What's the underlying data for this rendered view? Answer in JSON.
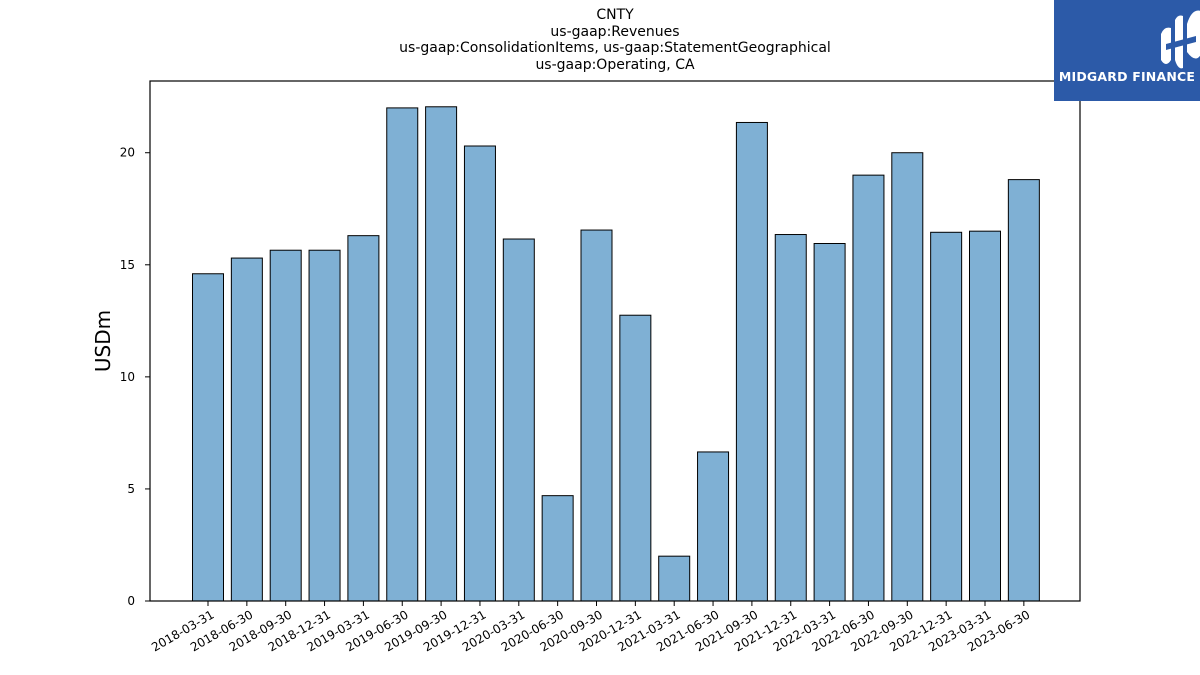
{
  "chart_data": {
    "type": "bar",
    "title_lines": [
      "CNTY",
      "us-gaap:Revenues",
      "us-gaap:ConsolidationItems, us-gaap:StatementGeographical",
      "us-gaap:Operating, CA"
    ],
    "ylabel": "USDm",
    "xlabel": "",
    "ylim": [
      0,
      23.2
    ],
    "yticks": [
      0,
      5,
      10,
      15,
      20
    ],
    "grid": false,
    "bar_color": "#7fb0d4",
    "edge_color": "#000000",
    "categories": [
      "2018-03-31",
      "2018-06-30",
      "2018-09-30",
      "2018-12-31",
      "2019-03-31",
      "2019-06-30",
      "2019-09-30",
      "2019-12-31",
      "2020-03-31",
      "2020-06-30",
      "2020-09-30",
      "2020-12-31",
      "2021-03-31",
      "2021-06-30",
      "2021-09-30",
      "2021-12-31",
      "2022-03-31",
      "2022-06-30",
      "2022-09-30",
      "2022-12-31",
      "2023-03-31",
      "2023-06-30"
    ],
    "values": [
      14.6,
      15.3,
      15.65,
      15.65,
      16.3,
      22.0,
      22.05,
      20.3,
      16.15,
      4.7,
      16.55,
      12.75,
      2.0,
      6.65,
      21.35,
      16.35,
      15.95,
      19.0,
      20.0,
      16.45,
      16.5,
      18.8
    ]
  },
  "logo": {
    "text": "MIDGARD FINANCE",
    "background": "#2c5aa8",
    "icon": "midgard-logo-icon"
  }
}
